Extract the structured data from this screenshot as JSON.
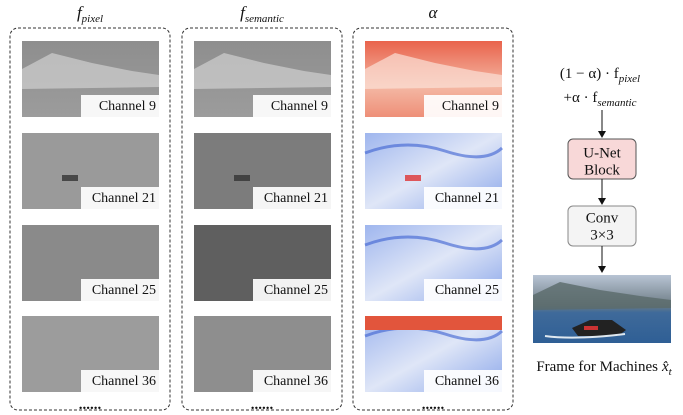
{
  "columns": [
    {
      "title": "f",
      "subscript": "pixel",
      "labels": [
        "Channel 9",
        "Channel 21",
        "Channel 25",
        "Channel 36"
      ],
      "more": "......"
    },
    {
      "title": "f",
      "subscript": "semantic",
      "labels": [
        "Channel 9",
        "Channel 21",
        "Channel 25",
        "Channel 36"
      ],
      "more": "......"
    },
    {
      "title": "α",
      "labels": [
        "Channel 9",
        "Channel 21",
        "Channel 25",
        "Channel 36"
      ],
      "more": "......"
    }
  ],
  "formula": {
    "line1": "(1 − α) · f",
    "line1_sub": "pixel",
    "line2": "+α · f",
    "line2_sub": "semantic"
  },
  "blocks": [
    {
      "lines": [
        "U-Net",
        "Block"
      ]
    },
    {
      "lines": [
        "Conv",
        "3×3"
      ]
    }
  ],
  "output": {
    "caption": "Frame for Machines",
    "symbol": "x̂",
    "subscript": "t"
  }
}
